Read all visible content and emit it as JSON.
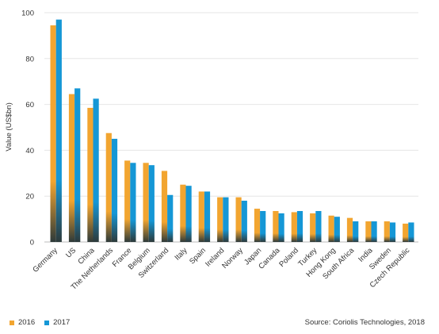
{
  "chart_data": {
    "type": "bar",
    "ylabel": "Value (US$bn)",
    "ylim": [
      0,
      100
    ],
    "yticks": [
      0,
      20,
      40,
      60,
      80,
      100
    ],
    "grid": true,
    "categories": [
      "Germany",
      "US",
      "China",
      "The Netherlands",
      "France",
      "Belgium",
      "Switzerland",
      "Italy",
      "Spain",
      "Ireland",
      "Norway",
      "Japan",
      "Canada",
      "Poland",
      "Turkey",
      "Hong Kong",
      "South Africa",
      "India",
      "Sweden",
      "Czech Republic"
    ],
    "series": [
      {
        "name": "2016",
        "color": "#f2a530",
        "values": [
          94.5,
          64.5,
          58.5,
          47.5,
          35.5,
          34.5,
          31,
          25,
          22,
          19.5,
          19.5,
          14.5,
          13.5,
          13,
          12.5,
          11.5,
          10.5,
          9,
          9,
          8
        ]
      },
      {
        "name": "2017",
        "color": "#1597d6",
        "values": [
          97,
          67,
          62.5,
          45,
          34.5,
          33.5,
          20.5,
          24.5,
          22,
          19.5,
          18,
          13.5,
          12.5,
          13.5,
          13.5,
          11,
          9,
          9,
          8.5,
          8.5
        ]
      }
    ],
    "legend_position": "bottom-left",
    "source": "Source: Coriolis Technologies, 2018"
  }
}
